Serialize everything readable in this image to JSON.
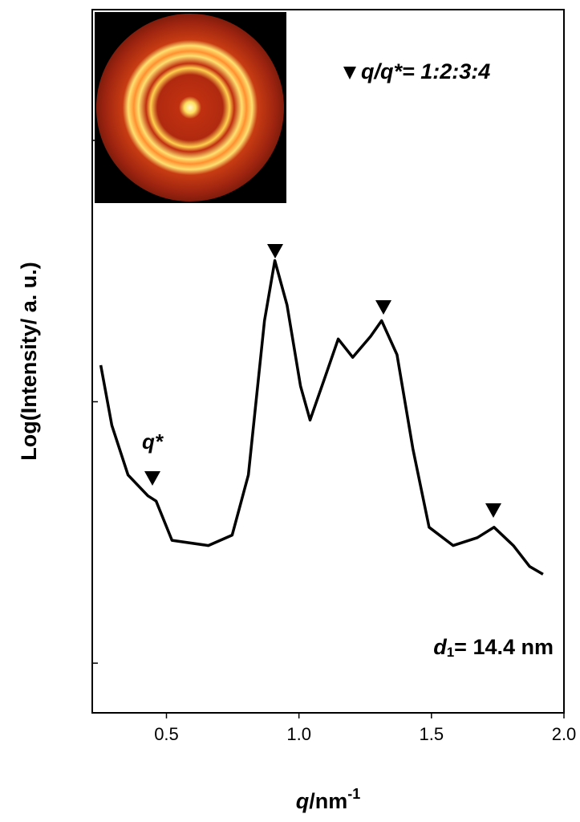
{
  "chart_data": {
    "type": "line",
    "y_label": "Log(Intensity/ a. u.)",
    "x_label": [
      "q",
      "/nm",
      "-1"
    ],
    "annotations": {
      "ratio": "q/q*= 1:2:3:4",
      "q_star": "q*",
      "d_spacing": [
        "d",
        "1",
        "= 14.4 nm"
      ]
    },
    "xlim": [
      0.22,
      2.0
    ],
    "ylim": [
      0.81,
      3.5
    ],
    "xticks": [
      0.5,
      {
        "value": 1,
        "label": "1.0"
      },
      1.5,
      {
        "value": 2,
        "label": "2.0"
      }
    ],
    "yticks": [
      1,
      2,
      3
    ],
    "series": [
      {
        "color": "#000000",
        "x": [
          0.252,
          0.294,
          0.355,
          0.43,
          0.461,
          0.521,
          0.658,
          0.748,
          0.809,
          0.87,
          0.909,
          0.955,
          1.006,
          1.042,
          1.097,
          1.148,
          1.203,
          1.27,
          1.312,
          1.37,
          1.43,
          1.491,
          1.582,
          1.673,
          1.736,
          1.809,
          1.87,
          1.921
        ],
        "values": [
          2.14,
          1.91,
          1.72,
          1.64,
          1.62,
          1.47,
          1.45,
          1.49,
          1.72,
          2.31,
          2.54,
          2.37,
          2.06,
          1.93,
          2.09,
          2.24,
          2.17,
          2.25,
          2.31,
          2.18,
          1.82,
          1.52,
          1.45,
          1.48,
          1.52,
          1.45,
          1.37,
          1.34
        ]
      }
    ]
  }
}
